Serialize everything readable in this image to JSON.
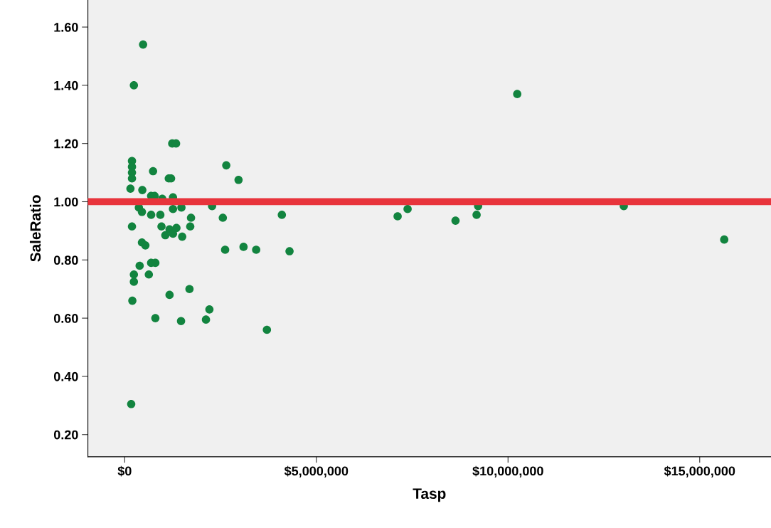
{
  "chart_data": {
    "type": "scatter",
    "xlabel": "Tasp",
    "ylabel": "SaleRatio",
    "xlim": [
      -960000,
      16860000
    ],
    "ylim": [
      0.124,
      1.693
    ],
    "xticks": [
      {
        "value": 0,
        "label": "$0"
      },
      {
        "value": 5000000,
        "label": "$5,000,000"
      },
      {
        "value": 10000000,
        "label": "$10,000,000"
      },
      {
        "value": 15000000,
        "label": "$15,000,000"
      }
    ],
    "yticks": [
      {
        "value": 0.2,
        "label": "0.20"
      },
      {
        "value": 0.4,
        "label": "0.40"
      },
      {
        "value": 0.6,
        "label": "0.60"
      },
      {
        "value": 0.8,
        "label": "0.80"
      },
      {
        "value": 1.0,
        "label": "1.00"
      },
      {
        "value": 1.2,
        "label": "1.20"
      },
      {
        "value": 1.4,
        "label": "1.40"
      },
      {
        "value": 1.6,
        "label": "1.60"
      }
    ],
    "grid": false,
    "marker": "circle",
    "ref_lines": [
      {
        "axis": "y",
        "value": 1.0,
        "color": "#e8343c"
      }
    ],
    "series": [
      {
        "color": "#12843f",
        "x": [
          480000,
          240000,
          1240000,
          1340000,
          190000,
          190000,
          190000,
          190000,
          740000,
          1150000,
          1210000,
          150000,
          460000,
          690000,
          780000,
          980000,
          1260000,
          2650000,
          2970000,
          370000,
          450000,
          690000,
          930000,
          1260000,
          1480000,
          1730000,
          2280000,
          2560000,
          4100000,
          7120000,
          7380000,
          8630000,
          9220000,
          9180000,
          10240000,
          13020000,
          15640000,
          190000,
          960000,
          1170000,
          1350000,
          1060000,
          1260000,
          1500000,
          1710000,
          450000,
          540000,
          2620000,
          3100000,
          3430000,
          4300000,
          390000,
          690000,
          800000,
          240000,
          240000,
          630000,
          1170000,
          1690000,
          200000,
          800000,
          1470000,
          2120000,
          2210000,
          3710000,
          170000
        ],
        "values": [
          1.54,
          1.4,
          1.2,
          1.2,
          1.14,
          1.12,
          1.1,
          1.08,
          1.105,
          1.08,
          1.08,
          1.045,
          1.04,
          1.02,
          1.02,
          1.01,
          1.015,
          1.125,
          1.075,
          0.98,
          0.965,
          0.955,
          0.955,
          0.975,
          0.98,
          0.945,
          0.985,
          0.945,
          0.955,
          0.95,
          0.975,
          0.935,
          0.985,
          0.955,
          1.37,
          0.985,
          0.87,
          0.915,
          0.915,
          0.905,
          0.91,
          0.885,
          0.89,
          0.88,
          0.915,
          0.86,
          0.85,
          0.835,
          0.845,
          0.835,
          0.83,
          0.78,
          0.79,
          0.79,
          0.725,
          0.75,
          0.75,
          0.68,
          0.7,
          0.66,
          0.6,
          0.59,
          0.595,
          0.63,
          0.56,
          0.305
        ]
      }
    ]
  }
}
